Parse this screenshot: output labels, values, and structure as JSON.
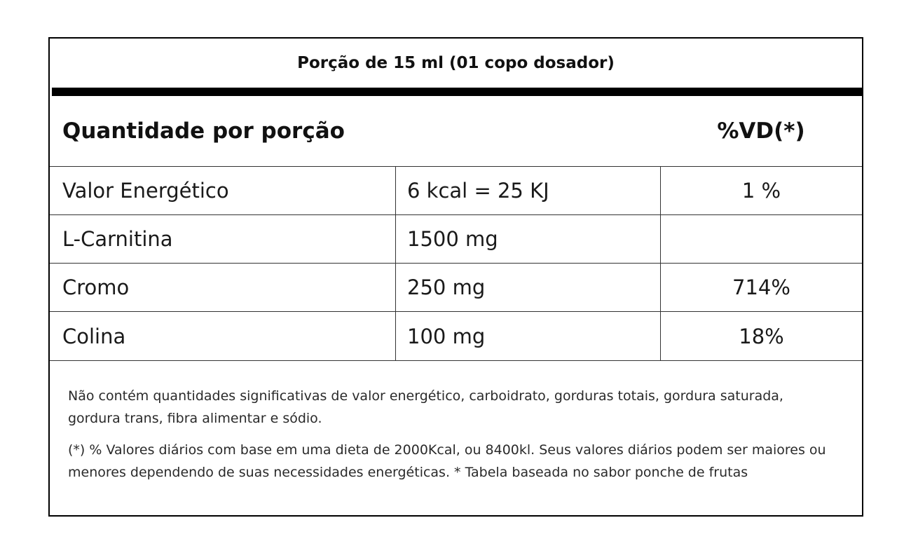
{
  "table": {
    "serving": "Porção de 15 ml (01 copo dosador)",
    "header": {
      "amount_label": "Quantidade por porção",
      "vd_label": "%VD(*)"
    },
    "rows": [
      {
        "name": "Valor Energético",
        "amount": "6 kcal = 25 KJ",
        "vd": "1 %"
      },
      {
        "name": "L-Carnitina",
        "amount": "1500 mg",
        "vd": ""
      },
      {
        "name": "Cromo",
        "amount": "250 mg",
        "vd": "714%"
      },
      {
        "name": "Colina",
        "amount": "100 mg",
        "vd": "18%"
      }
    ],
    "notes": [
      "Não contém quantidades significativas de valor energético, carboidrato, gorduras totais, gordura saturada, gordura trans, fibra alimentar e sódio.",
      "(*) % Valores diários com base em uma dieta de 2000Kcal, ou 8400kl. Seus valores diários podem ser maiores ou menores dependendo de suas necessidades energéticas. * Tabela baseada no sabor ponche de frutas"
    ]
  }
}
